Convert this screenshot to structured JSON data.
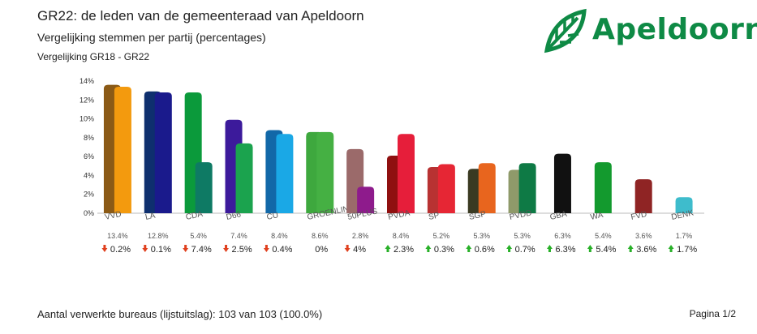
{
  "header": {
    "title": "GR22: de leden van de gemeenteraad van Apeldoorn",
    "subtitle": "Vergelijking stemmen per partij (percentages)",
    "comparison": "Vergelijking GR18 - GR22"
  },
  "logo": {
    "text": "Apeldoorn",
    "icon": "leaf-logo-icon",
    "color": "#0e8a45"
  },
  "footer": {
    "bureaus": "Aantal verwerkte bureaus (lijstuitslag): 103 van 103 (100.0%)",
    "page": "Pagina 1/2"
  },
  "chart_data": {
    "type": "bar",
    "ylim": [
      0,
      14
    ],
    "yticks": [
      0,
      2,
      4,
      6,
      8,
      10,
      12,
      14
    ],
    "ytick_labels": [
      "0%",
      "2%",
      "4%",
      "6%",
      "8%",
      "10%",
      "12%",
      "14%"
    ],
    "grid": false,
    "categories": [
      "VVD",
      "LA",
      "CDA",
      "D66",
      "CU",
      "GROENLIN",
      "50PLUS",
      "PVDA",
      "SP",
      "SGP",
      "PVDD",
      "GBA",
      "WA",
      "FVD",
      "DENK"
    ],
    "series": [
      {
        "values": [
          13.6,
          12.9,
          12.8,
          9.9,
          8.8,
          8.6,
          6.8,
          6.1,
          4.9,
          4.7,
          4.6,
          null,
          null,
          null,
          null
        ]
      },
      {
        "values": [
          13.4,
          12.8,
          5.4,
          7.4,
          8.4,
          8.6,
          2.8,
          8.4,
          5.2,
          5.3,
          5.3,
          6.3,
          5.4,
          3.6,
          1.7
        ]
      }
    ],
    "colors_old": [
      "#8B5A16",
      "#0E2F6E",
      "#0B9A3B",
      "#3C1A9B",
      "#1268A8",
      "#3EA83E",
      "#9B6A6A",
      "#8F1010",
      "#B83232",
      "#3A3A22",
      "#8F9A6A",
      null,
      null,
      null,
      null
    ],
    "colors_new": [
      "#F39A0E",
      "#1A1A8C",
      "#0E7A64",
      "#1BA34E",
      "#1AA8E6",
      "#45B043",
      "#8E1B8C",
      "#E61E3A",
      "#E62634",
      "#E8651E",
      "#0E7A45",
      "#111111",
      "#139A2E",
      "#8F2424",
      "#3EBCCC"
    ],
    "value_labels": [
      "13.4%",
      "12.8%",
      "5.4%",
      "7.4%",
      "8.4%",
      "8.6%",
      "2.8%",
      "8.4%",
      "5.2%",
      "5.3%",
      "5.3%",
      "6.3%",
      "5.4%",
      "3.6%",
      "1.7%"
    ],
    "change_labels": [
      "0.2%",
      "0.1%",
      "7.4%",
      "2.5%",
      "0.4%",
      "0%",
      "4%",
      "2.3%",
      "0.3%",
      "0.6%",
      "0.7%",
      "6.3%",
      "5.4%",
      "3.6%",
      "1.7%"
    ],
    "change_direction": [
      "down",
      "down",
      "down",
      "down",
      "down",
      "none",
      "down",
      "up",
      "up",
      "up",
      "up",
      "up",
      "up",
      "up",
      "up"
    ],
    "arrow_colors": {
      "down": "#E0401E",
      "up": "#28B028"
    }
  }
}
